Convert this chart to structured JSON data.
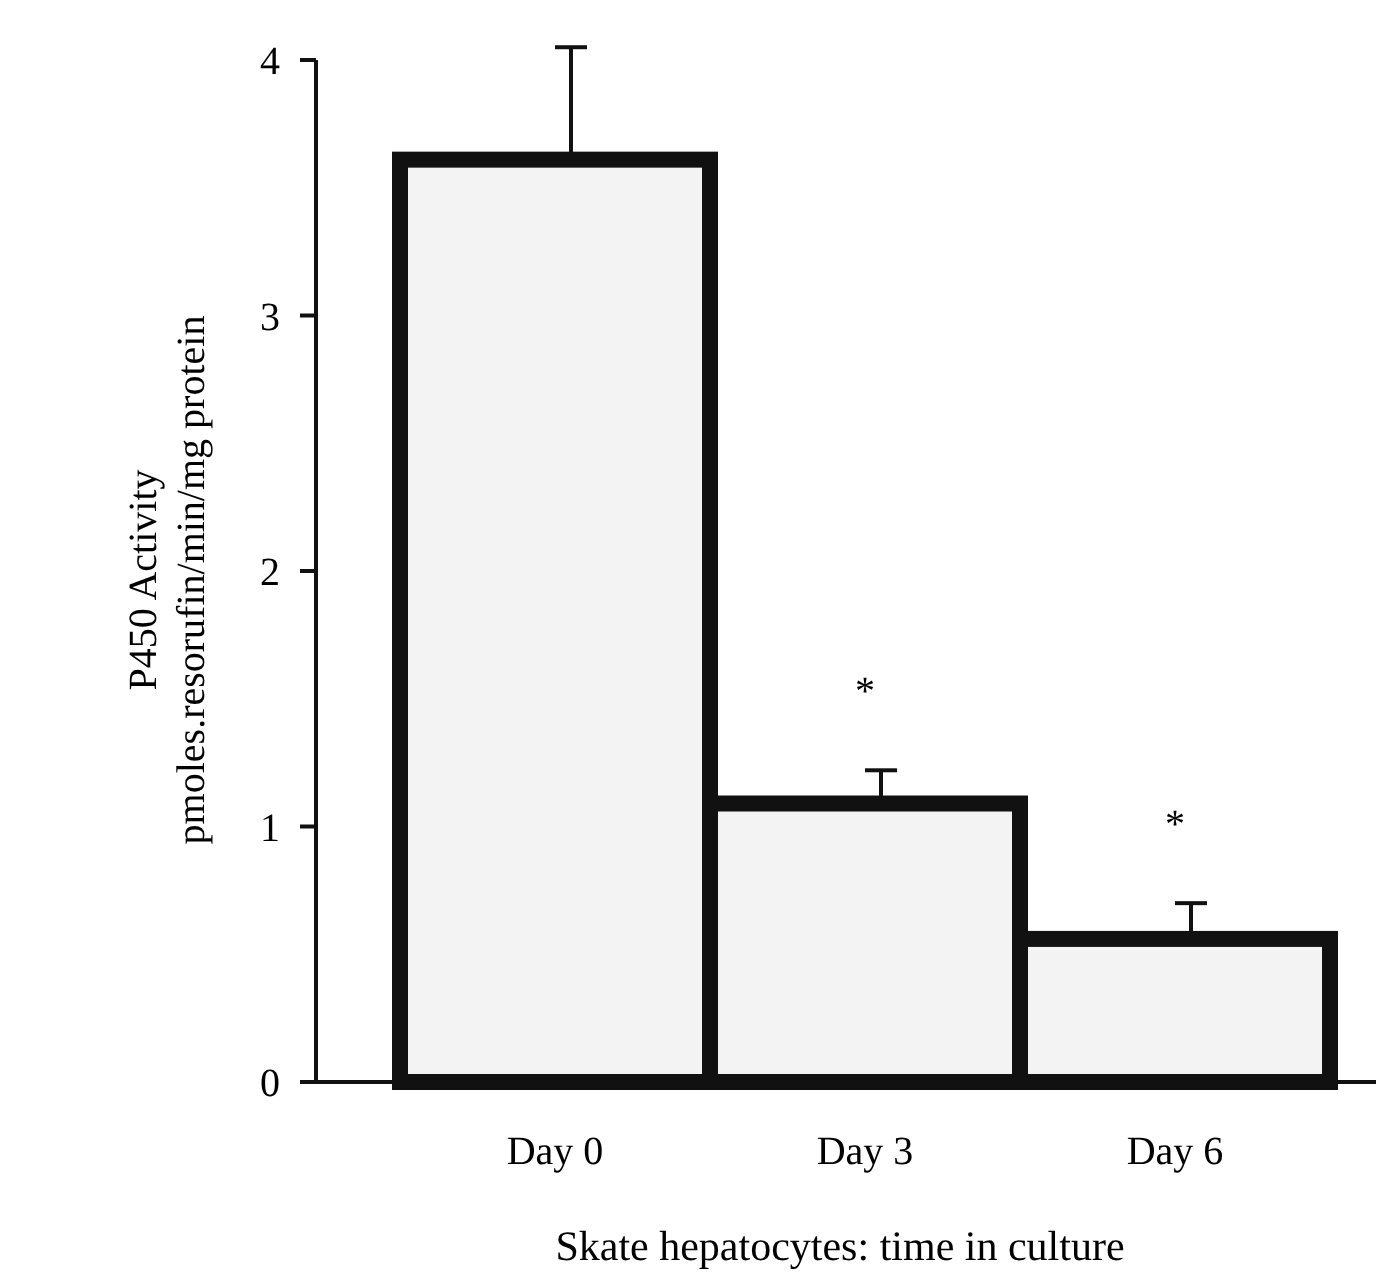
{
  "chart_data": {
    "type": "bar",
    "xlabel": "Skate hepatocytes: time in culture",
    "ylabel": "P450 Activity\npmoles.resorufin/min/mg protein",
    "categories": [
      "Day 0",
      "Day 3",
      "Day 6"
    ],
    "values": [
      3.61,
      1.09,
      0.56
    ],
    "errors": [
      [
        3.61,
        4.05
      ],
      [
        1.09,
        1.22
      ],
      [
        0.56,
        0.7
      ]
    ],
    "color": "#f3f3f3",
    "ylim": [
      0,
      4
    ],
    "yticks": [
      0,
      1,
      2,
      3,
      4
    ],
    "grid": false,
    "annotations": [
      "*",
      "*"
    ]
  }
}
